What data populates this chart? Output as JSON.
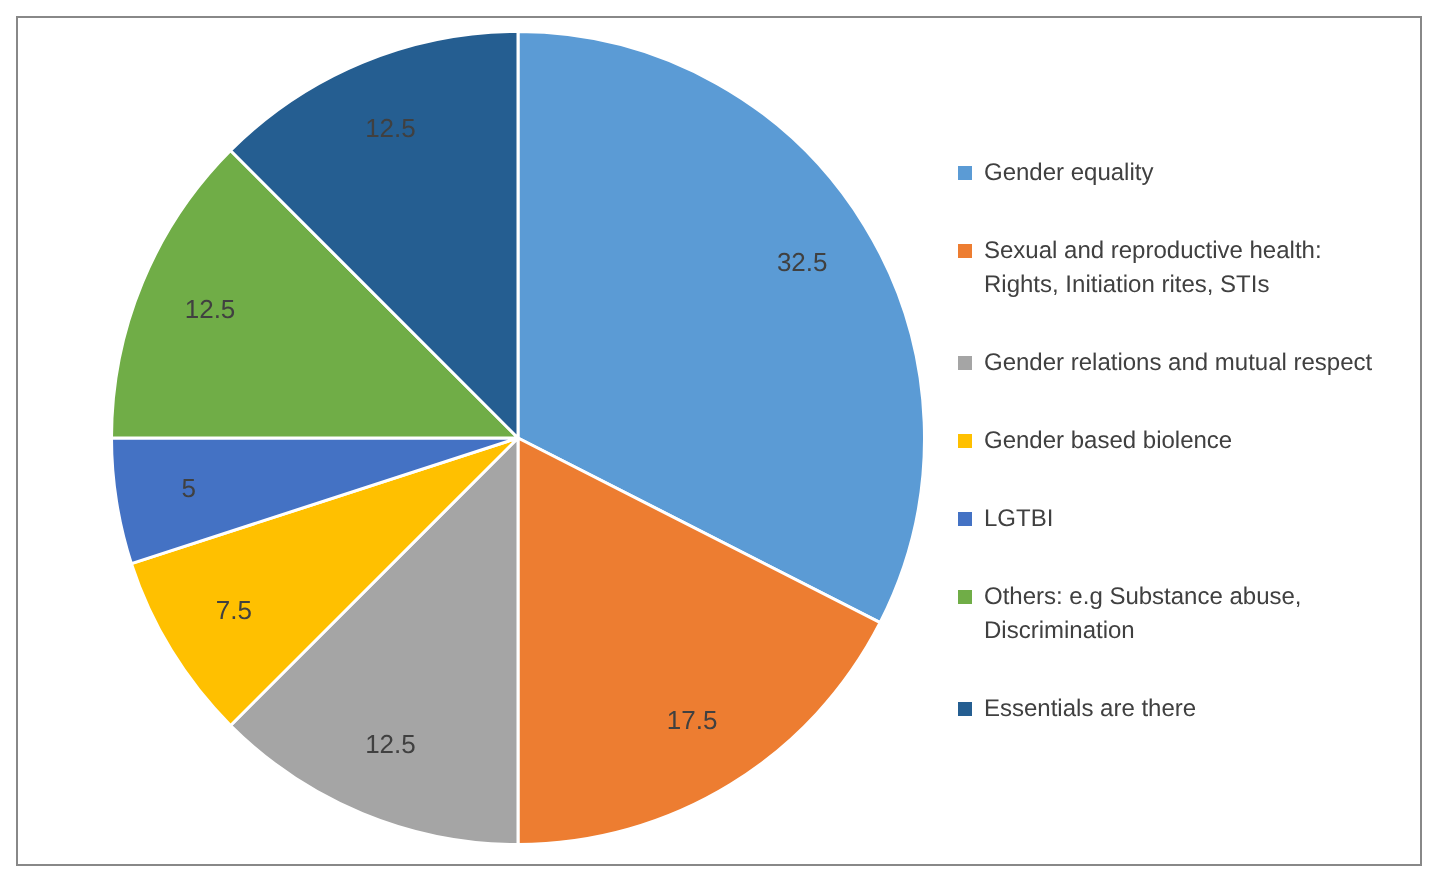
{
  "chart_data": {
    "type": "pie",
    "categories": [
      "Gender equality",
      "Sexual and reproductive health: Rights, Initiation rites, STIs",
      "Gender relations and mutual respect",
      "Gender based biolence",
      "LGTBI",
      "Others: e.g Substance abuse, Discrimination",
      "Essentials are there"
    ],
    "values": [
      32.5,
      17.5,
      12.5,
      7.5,
      5,
      12.5,
      12.5
    ],
    "colors": [
      "#5b9bd5",
      "#ed7d31",
      "#a5a5a5",
      "#ffc000",
      "#4472c4",
      "#70ad47",
      "#255e91"
    ],
    "data_labels": true,
    "legend": "right"
  }
}
